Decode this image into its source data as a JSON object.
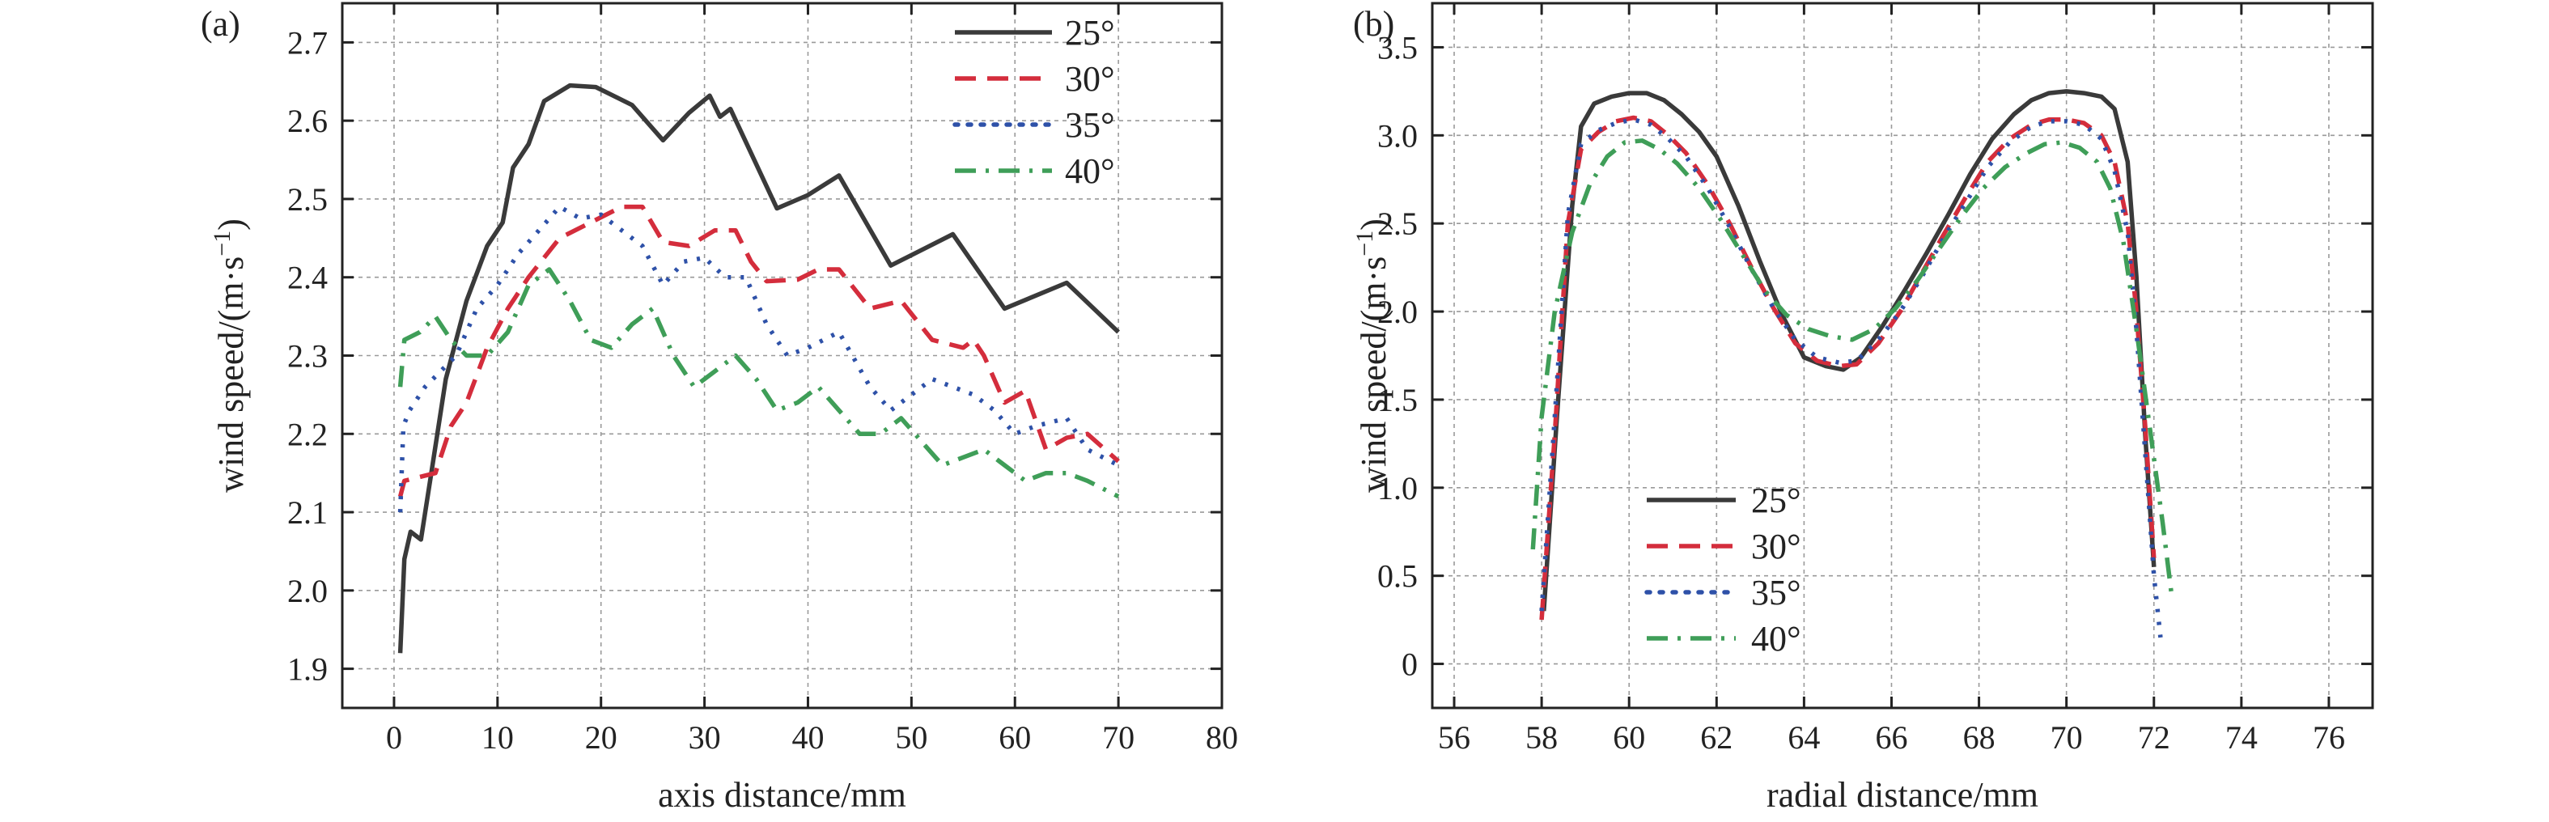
{
  "chart_data": [
    {
      "type": "line",
      "panel_label": "(a)",
      "xlabel": "axis distance/mm",
      "ylabel": "wind speed/(m·s",
      "ylabel_sup": "−1",
      "ylabel_close": ")",
      "xlim": [
        -5,
        80
      ],
      "ylim": [
        1.85,
        2.75
      ],
      "xticks": [
        0,
        10,
        20,
        30,
        40,
        50,
        60,
        70,
        80
      ],
      "yticks": [
        1.9,
        2.0,
        2.1,
        2.2,
        2.3,
        2.4,
        2.5,
        2.6,
        2.7
      ],
      "xtick_labels": [
        "0",
        "10",
        "20",
        "30",
        "40",
        "50",
        "60",
        "70",
        "80"
      ],
      "ytick_labels": [
        "1.9",
        "2.0",
        "2.1",
        "2.2",
        "2.3",
        "2.4",
        "2.5",
        "2.6",
        "2.7"
      ],
      "grid": true,
      "legend_position": "top-right",
      "series": [
        {
          "name": "25°",
          "color": "#3a3a3a",
          "dash": "solid",
          "x": [
            0.6,
            1.0,
            1.6,
            2.6,
            3.6,
            5.0,
            7.0,
            9.0,
            10.5,
            11.5,
            13.0,
            14.5,
            17.0,
            19.5,
            23.0,
            26.0,
            28.5,
            30.5,
            31.5,
            32.5,
            37.0,
            40.0,
            43.0,
            48.0,
            54.0,
            59.0,
            65.0,
            70.0
          ],
          "y": [
            1.92,
            2.04,
            2.075,
            2.065,
            2.15,
            2.27,
            2.37,
            2.44,
            2.47,
            2.54,
            2.57,
            2.625,
            2.645,
            2.643,
            2.62,
            2.575,
            2.61,
            2.632,
            2.605,
            2.615,
            2.488,
            2.505,
            2.53,
            2.415,
            2.455,
            2.36,
            2.393,
            2.33
          ]
        },
        {
          "name": "30°",
          "color": "#d42d3c",
          "dash": "long-dash",
          "x": [
            0.6,
            1.0,
            2.5,
            4.0,
            5.5,
            7.0,
            9.0,
            11.0,
            13.0,
            16.0,
            19.0,
            22.0,
            24.0,
            26.0,
            28.5,
            31.0,
            33.0,
            34.5,
            36.0,
            39.0,
            41.0,
            43.0,
            46.0,
            49.0,
            52.0,
            55.0,
            56.0,
            57.0,
            59.0,
            61.0,
            63.0,
            65.0,
            67.0,
            70.0
          ],
          "y": [
            2.12,
            2.14,
            2.145,
            2.15,
            2.21,
            2.24,
            2.31,
            2.36,
            2.4,
            2.45,
            2.47,
            2.49,
            2.49,
            2.445,
            2.44,
            2.46,
            2.46,
            2.42,
            2.395,
            2.397,
            2.41,
            2.41,
            2.36,
            2.37,
            2.32,
            2.31,
            2.32,
            2.3,
            2.24,
            2.255,
            2.18,
            2.195,
            2.2,
            2.165
          ]
        },
        {
          "name": "35°",
          "color": "#2e51a8",
          "dash": "dotted",
          "x": [
            0.6,
            0.9,
            1.5,
            3.0,
            4.5,
            6.0,
            8.0,
            10.0,
            12.0,
            14.0,
            16.0,
            18.0,
            20.0,
            22.0,
            24.0,
            26.0,
            28.0,
            30.0,
            32.0,
            34.0,
            36.0,
            38.0,
            40.0,
            43.0,
            46.0,
            48.0,
            50.0,
            52.0,
            54.0,
            56.0,
            58.0,
            60.0,
            62.0,
            65.0,
            67.0,
            70.0
          ],
          "y": [
            2.1,
            2.21,
            2.23,
            2.26,
            2.28,
            2.3,
            2.36,
            2.39,
            2.43,
            2.46,
            2.49,
            2.475,
            2.48,
            2.46,
            2.44,
            2.39,
            2.42,
            2.425,
            2.4,
            2.4,
            2.34,
            2.3,
            2.31,
            2.33,
            2.26,
            2.23,
            2.25,
            2.27,
            2.26,
            2.25,
            2.23,
            2.2,
            2.21,
            2.22,
            2.18,
            2.16
          ]
        },
        {
          "name": "40°",
          "color": "#3f9e58",
          "dash": "dash-dot",
          "x": [
            0.6,
            1.0,
            2.5,
            4.0,
            5.5,
            7.0,
            9.0,
            11.0,
            13.0,
            15.0,
            17.0,
            19.0,
            21.0,
            23.0,
            25.0,
            27.0,
            29.0,
            31.0,
            33.0,
            35.0,
            37.0,
            39.0,
            41.0,
            43.0,
            45.0,
            47.0,
            49.0,
            51.0,
            53.0,
            55.0,
            57.0,
            59.0,
            61.0,
            63.0,
            65.0,
            67.0,
            70.0
          ],
          "y": [
            2.26,
            2.32,
            2.33,
            2.35,
            2.32,
            2.3,
            2.3,
            2.33,
            2.39,
            2.41,
            2.37,
            2.32,
            2.31,
            2.34,
            2.36,
            2.3,
            2.26,
            2.28,
            2.3,
            2.27,
            2.23,
            2.24,
            2.26,
            2.23,
            2.2,
            2.2,
            2.22,
            2.19,
            2.16,
            2.17,
            2.18,
            2.16,
            2.14,
            2.15,
            2.15,
            2.14,
            2.12
          ]
        }
      ]
    },
    {
      "type": "line",
      "panel_label": "(b)",
      "xlabel": "radial distance/mm",
      "ylabel": "wind speed/(m·s",
      "ylabel_sup": "−1",
      "ylabel_close": ")",
      "xlim": [
        55.5,
        77.0
      ],
      "ylim": [
        -0.25,
        3.75
      ],
      "xticks": [
        56,
        58,
        60,
        62,
        64,
        66,
        68,
        70,
        72,
        74,
        76
      ],
      "yticks": [
        0,
        0.5,
        1.0,
        1.5,
        2.0,
        2.5,
        3.0,
        3.5
      ],
      "xtick_labels": [
        "56",
        "58",
        "60",
        "62",
        "64",
        "66",
        "68",
        "70",
        "72",
        "74",
        "76"
      ],
      "ytick_labels": [
        "0",
        "0.5",
        "1.0",
        "1.5",
        "2.0",
        "2.5",
        "3.0",
        "3.5"
      ],
      "grid": true,
      "legend_position": "bottom-left",
      "series": [
        {
          "name": "25°",
          "color": "#3a3a3a",
          "dash": "solid",
          "x": [
            58.05,
            58.35,
            58.7,
            58.9,
            59.2,
            59.6,
            60.0,
            60.4,
            60.8,
            61.2,
            61.6,
            62.0,
            62.5,
            63.0,
            63.5,
            64.0,
            64.5,
            64.9,
            65.3,
            65.8,
            66.3,
            66.8,
            67.3,
            67.8,
            68.3,
            68.8,
            69.2,
            69.6,
            70.0,
            70.4,
            70.8,
            71.1,
            71.4,
            71.6,
            71.8,
            72.0
          ],
          "y": [
            0.3,
            1.4,
            2.6,
            3.05,
            3.18,
            3.22,
            3.24,
            3.24,
            3.2,
            3.12,
            3.02,
            2.88,
            2.6,
            2.28,
            1.98,
            1.74,
            1.69,
            1.67,
            1.74,
            1.92,
            2.12,
            2.33,
            2.55,
            2.78,
            2.98,
            3.12,
            3.2,
            3.24,
            3.25,
            3.24,
            3.22,
            3.15,
            2.85,
            2.2,
            1.3,
            0.55
          ]
        },
        {
          "name": "30°",
          "color": "#d42d3c",
          "dash": "long-dash",
          "x": [
            58.0,
            58.3,
            58.6,
            58.9,
            59.3,
            59.7,
            60.1,
            60.5,
            60.9,
            61.3,
            61.8,
            62.3,
            62.8,
            63.3,
            63.8,
            64.3,
            64.8,
            65.2,
            65.7,
            66.2,
            66.7,
            67.2,
            67.7,
            68.2,
            68.7,
            69.2,
            69.6,
            70.0,
            70.4,
            70.8,
            71.1,
            71.4,
            71.6,
            71.8,
            72.0
          ],
          "y": [
            0.25,
            1.3,
            2.5,
            2.92,
            3.02,
            3.08,
            3.1,
            3.08,
            3.0,
            2.9,
            2.72,
            2.5,
            2.25,
            2.02,
            1.82,
            1.72,
            1.69,
            1.7,
            1.82,
            2.0,
            2.22,
            2.44,
            2.65,
            2.85,
            2.98,
            3.06,
            3.09,
            3.09,
            3.07,
            3.0,
            2.85,
            2.5,
            2.0,
            1.35,
            0.6
          ]
        },
        {
          "name": "35°",
          "color": "#2e51a8",
          "dash": "dotted",
          "x": [
            58.0,
            58.3,
            58.6,
            58.9,
            59.3,
            59.7,
            60.1,
            60.5,
            60.9,
            61.3,
            61.8,
            62.3,
            62.8,
            63.3,
            63.8,
            64.3,
            64.8,
            65.2,
            65.7,
            66.2,
            66.7,
            67.2,
            67.7,
            68.2,
            68.7,
            69.2,
            69.6,
            70.0,
            70.4,
            70.8,
            71.1,
            71.4,
            71.6,
            71.8,
            72.0,
            72.15
          ],
          "y": [
            0.3,
            1.4,
            2.55,
            2.95,
            3.03,
            3.07,
            3.09,
            3.06,
            2.98,
            2.88,
            2.7,
            2.48,
            2.24,
            2.02,
            1.84,
            1.74,
            1.71,
            1.72,
            1.84,
            2.0,
            2.2,
            2.42,
            2.62,
            2.82,
            2.96,
            3.05,
            3.08,
            3.08,
            3.06,
            2.98,
            2.8,
            2.45,
            1.9,
            1.2,
            0.5,
            0.15
          ]
        },
        {
          "name": "40°",
          "color": "#3f9e58",
          "dash": "dash-dot",
          "x": [
            57.8,
            58.0,
            58.3,
            58.7,
            59.1,
            59.5,
            59.9,
            60.3,
            60.7,
            61.1,
            61.6,
            62.1,
            62.6,
            63.1,
            63.6,
            64.1,
            64.6,
            65.1,
            65.6,
            66.1,
            66.6,
            67.1,
            67.6,
            68.1,
            68.6,
            69.1,
            69.5,
            69.9,
            70.3,
            70.7,
            71.0,
            71.3,
            71.6,
            71.9,
            72.2,
            72.4
          ],
          "y": [
            0.65,
            1.4,
            2.0,
            2.45,
            2.72,
            2.88,
            2.96,
            2.97,
            2.92,
            2.84,
            2.7,
            2.52,
            2.32,
            2.12,
            1.98,
            1.9,
            1.86,
            1.84,
            1.9,
            2.02,
            2.18,
            2.36,
            2.54,
            2.7,
            2.82,
            2.9,
            2.95,
            2.96,
            2.93,
            2.85,
            2.7,
            2.4,
            1.9,
            1.35,
            0.8,
            0.4
          ]
        }
      ]
    }
  ]
}
